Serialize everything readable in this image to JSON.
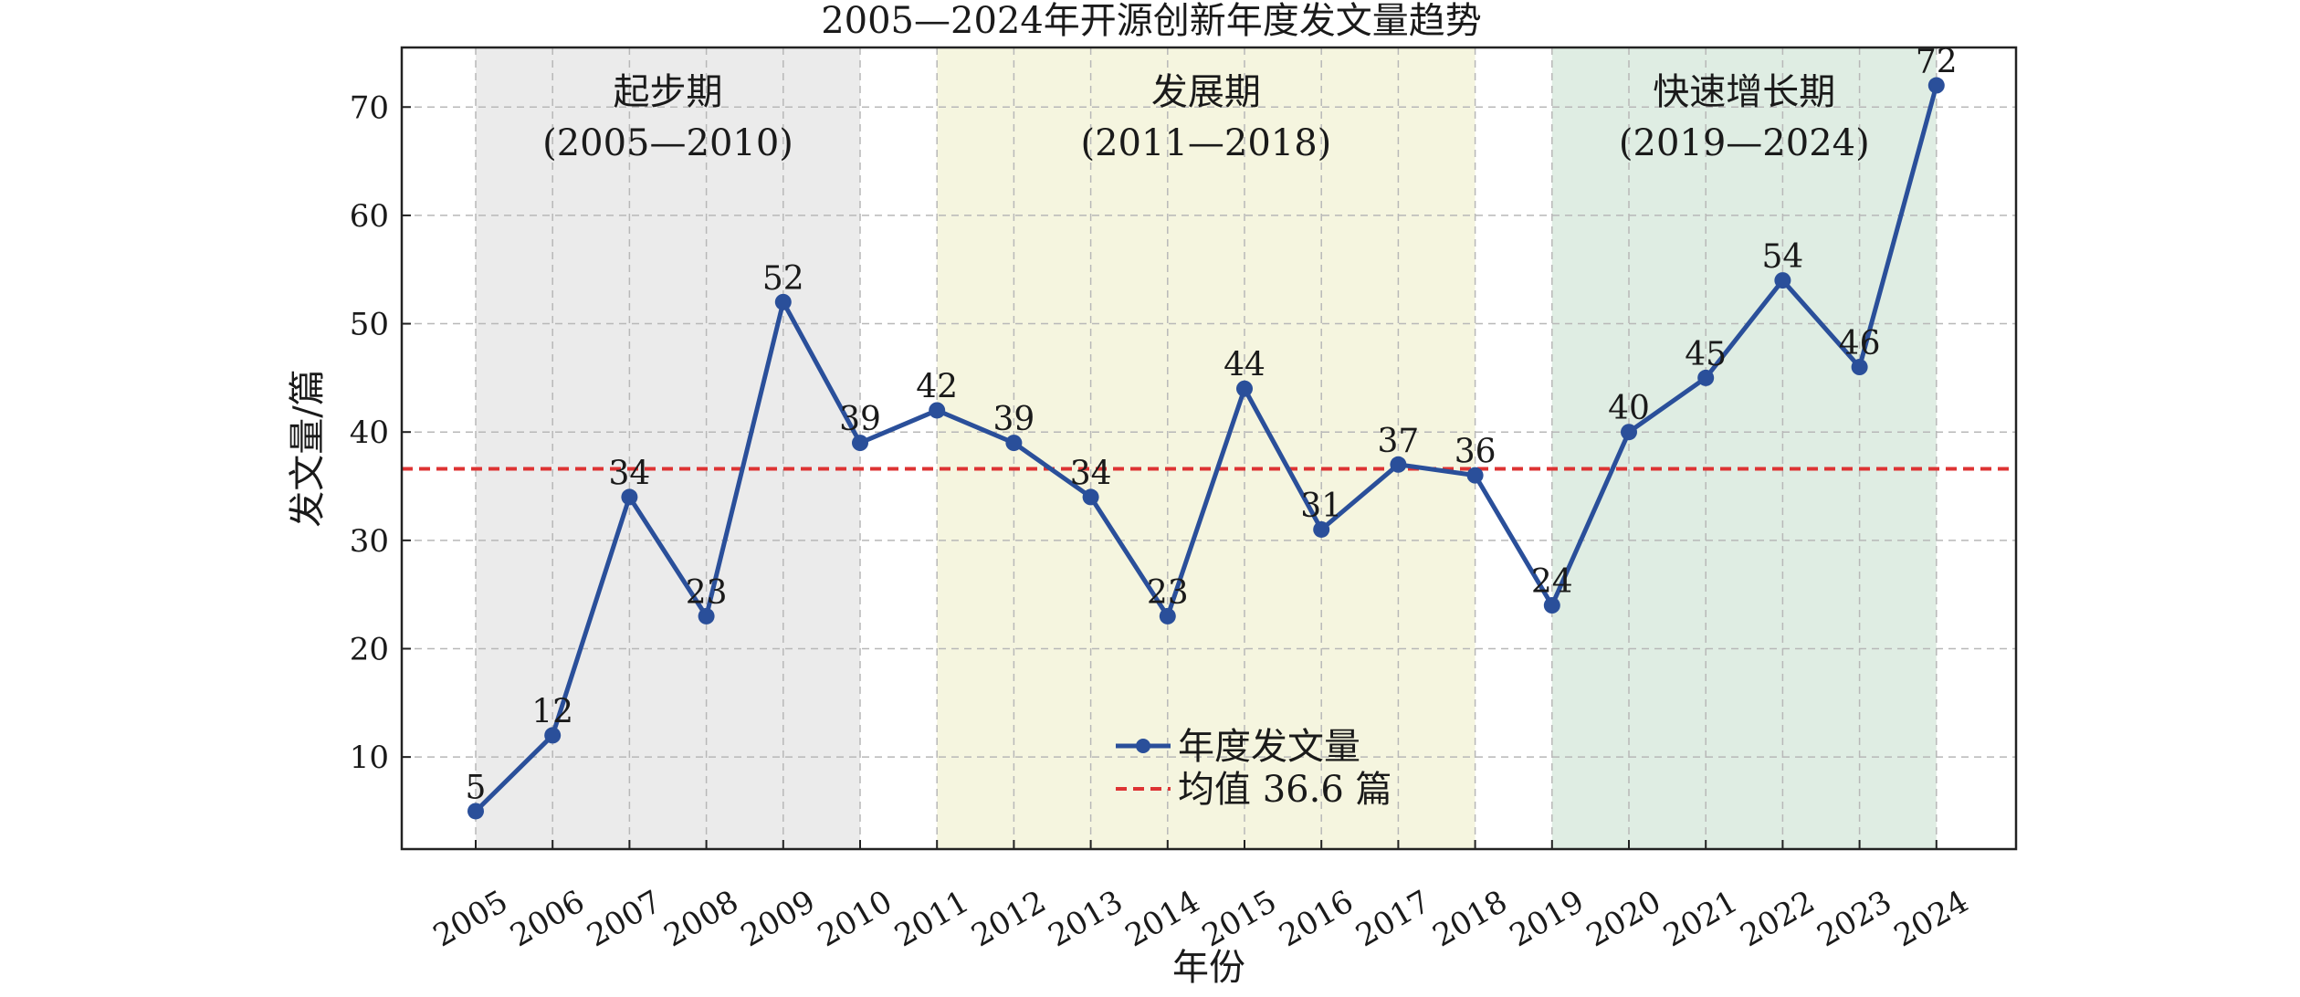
{
  "chart_data": {
    "type": "line",
    "title": "2005—2024年开源创新年度发文量趋势",
    "xlabel": "年份",
    "ylabel": "发文量/篇",
    "categories": [
      "2005",
      "2006",
      "2007",
      "2008",
      "2009",
      "2010",
      "2011",
      "2012",
      "2013",
      "2014",
      "2015",
      "2016",
      "2017",
      "2018",
      "2019",
      "2020",
      "2021",
      "2022",
      "2023",
      "2024"
    ],
    "series": [
      {
        "name": "年度发文量",
        "color": "#2a4f9a",
        "values": [
          5,
          12,
          34,
          23,
          52,
          39,
          42,
          39,
          34,
          23,
          44,
          31,
          37,
          36,
          24,
          40,
          45,
          54,
          46,
          72
        ]
      }
    ],
    "reference_line": {
      "label": "均值 36.6 篇",
      "value": 36.6,
      "color": "#dd3333"
    },
    "phases": [
      {
        "name": "起步期",
        "range_label": "(2005—2010)",
        "from": "2005",
        "to": "2010",
        "color": "#ebebeb"
      },
      {
        "name": "发展期",
        "range_label": "(2011—2018)",
        "from": "2011",
        "to": "2018",
        "color": "#f5f5df"
      },
      {
        "name": "快速增长期",
        "range_label": "(2019—2024)",
        "from": "2019",
        "to": "2024",
        "color": "#dfede3"
      }
    ],
    "yticks": [
      10,
      20,
      30,
      40,
      50,
      60,
      70
    ],
    "ylim": [
      1.5,
      75.5
    ],
    "grid": true,
    "legend_position": "bottom-center"
  }
}
